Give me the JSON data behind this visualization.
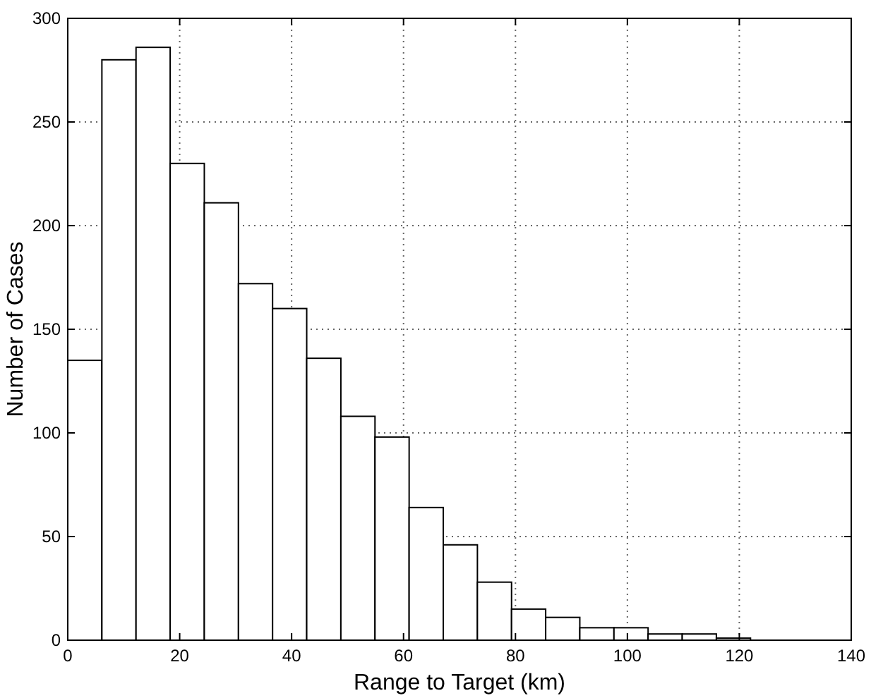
{
  "chart_data": {
    "type": "histogram",
    "xlabel": "Range to Target (km)",
    "ylabel": "Number of Cases",
    "bins": [
      0,
      6.1,
      12.2,
      18.3,
      24.4,
      30.5,
      36.6,
      42.7,
      48.8,
      54.9,
      61,
      67.1,
      73.2,
      79.3,
      85.4,
      91.5,
      97.6,
      103.7,
      109.8,
      115.9,
      122
    ],
    "values": [
      135,
      280,
      286,
      230,
      211,
      172,
      160,
      136,
      108,
      98,
      64,
      46,
      28,
      15,
      11,
      6,
      6,
      3,
      3,
      1
    ],
    "color": "#ffffff",
    "xlim": [
      0,
      140
    ],
    "xticks": [
      0,
      20,
      40,
      60,
      80,
      100,
      120,
      140
    ],
    "ylim": [
      0,
      300
    ],
    "yticks": [
      0,
      50,
      100,
      150,
      200,
      250,
      300
    ],
    "grid": true
  }
}
